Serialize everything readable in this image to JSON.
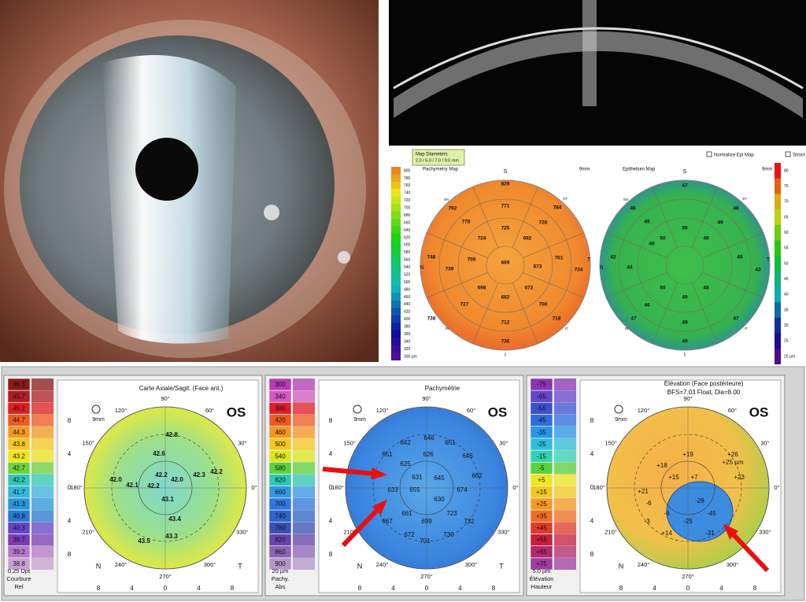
{
  "oct_maps": {
    "map_diameters": {
      "title": "Map Diameters",
      "value": "2.0 / 5.0 / 7.0 / 9.0 mm"
    },
    "normalize_epi_map": "Normalize Epi Map",
    "stroma": "Strom",
    "pachymetry": {
      "title": "Pachymetry Map",
      "size": "9mm",
      "scale": [
        800,
        780,
        760,
        740,
        720,
        700,
        680,
        660,
        640,
        620,
        600,
        580,
        560,
        540,
        520,
        500,
        480,
        460,
        440,
        420,
        400,
        380,
        360,
        340,
        320
      ],
      "scale_unit": "300 µm",
      "directions": [
        "S",
        "N",
        "T",
        "I",
        "SN",
        "ST",
        "IN",
        "IT"
      ],
      "values": [
        829,
        792,
        771,
        784,
        778,
        728,
        725,
        724,
        692,
        748,
        708,
        669,
        673,
        701,
        734,
        739,
        698,
        682,
        672,
        727,
        700,
        738,
        712,
        718,
        736
      ]
    },
    "epithelium": {
      "title": "Epithelium Map",
      "size": "9mm",
      "scale": [
        80,
        75,
        70,
        65,
        60,
        55,
        50,
        45,
        40,
        35,
        30,
        25
      ],
      "scale_unit": "20 µm",
      "directions": [
        "S",
        "N",
        "T",
        "I",
        "SN",
        "ST",
        "IN",
        "IT"
      ],
      "values": [
        47,
        46,
        48,
        49,
        50,
        49,
        42,
        44,
        49,
        50,
        48,
        46,
        43,
        46,
        50,
        49,
        48,
        47,
        49,
        47,
        49
      ]
    }
  },
  "topography": [
    {
      "title": "Carte Axiale/Sagit. (Face ant.)",
      "eye": "OS",
      "size": "9mm",
      "scale": [
        "46.3",
        "45.7",
        "45.2",
        "44.7",
        "44.3",
        "43.8",
        "43.2",
        "42.7",
        "42.2",
        "41.7",
        "41.3",
        "40.8",
        "40.3",
        "39.7",
        "39.2",
        "38.8"
      ],
      "footer": [
        "0.25 Dpt",
        "Courbure",
        "Rel"
      ],
      "angles": [
        "90°",
        "60°",
        "30°",
        "0°",
        "330°",
        "300°",
        "270°",
        "240°",
        "210°",
        "180°",
        "150°",
        "120°"
      ],
      "y_ticks": [
        "8",
        "4",
        "0",
        "4",
        "8"
      ],
      "x_ticks": [
        "8",
        "4",
        "0",
        "4",
        "8"
      ],
      "sides": [
        "N",
        "T"
      ],
      "values": [
        "42.8",
        "42.6",
        "42.2",
        "42.0",
        "42.3",
        "42.2",
        "42.0",
        "42.1",
        "42.2",
        "43.1",
        "43.4",
        "43.3",
        "43.5"
      ]
    },
    {
      "title": "Pachymétrie",
      "eye": "OS",
      "size": "9mm",
      "scale": [
        "300",
        "340",
        "380",
        "420",
        "460",
        "500",
        "540",
        "580",
        "620",
        "660",
        "700",
        "740",
        "780",
        "820",
        "860",
        "900"
      ],
      "footer": [
        "20 µm",
        "Pachy.",
        "Abs"
      ],
      "angles": [
        "90°",
        "60°",
        "30°",
        "0°",
        "330°",
        "300°",
        "270°",
        "240°",
        "210°",
        "180°",
        "150°",
        "120°"
      ],
      "y_ticks": [
        "8",
        "4",
        "0",
        "4",
        "8"
      ],
      "x_ticks": [
        "8",
        "4",
        "0",
        "4",
        "8"
      ],
      "sides": [
        "N",
        "T"
      ],
      "values": [
        "642",
        "646",
        "651",
        "651",
        "625",
        "626",
        "646",
        "631",
        "645",
        "662",
        "633",
        "655",
        "630",
        "674",
        "667",
        "661",
        "723",
        "732",
        "699",
        "672",
        "701",
        "730"
      ]
    },
    {
      "title": "Élévation (Face postérieure)",
      "subtitle": "BFS=7.03 Float, Dia=8.00",
      "eye": "OS",
      "size": "9mm",
      "scale": [
        "-75",
        "-65",
        "-55",
        "-45",
        "-35",
        "-25",
        "-15",
        "-5",
        "+5",
        "+15",
        "+25",
        "+35",
        "+45",
        "+55",
        "+65",
        "+75"
      ],
      "footer": [
        "5.0 µm",
        "Élévation",
        "Hauteur"
      ],
      "angles": [
        "90°",
        "60°",
        "30°",
        "0°",
        "330°",
        "300°",
        "270°",
        "240°",
        "210°",
        "180°",
        "150°",
        "120°"
      ],
      "y_ticks": [
        "8",
        "4",
        "0",
        "4",
        "8"
      ],
      "x_ticks": [
        "8",
        "4",
        "0",
        "4",
        "8"
      ],
      "sides": [
        "N",
        "T"
      ],
      "values": [
        "+19",
        "+26",
        "+25 µm",
        "+18",
        "+15",
        "+7",
        "+23",
        "+21",
        "-6",
        "-3",
        "-6",
        "+14",
        "-28",
        "-25",
        "-45",
        "-31"
      ]
    }
  ]
}
